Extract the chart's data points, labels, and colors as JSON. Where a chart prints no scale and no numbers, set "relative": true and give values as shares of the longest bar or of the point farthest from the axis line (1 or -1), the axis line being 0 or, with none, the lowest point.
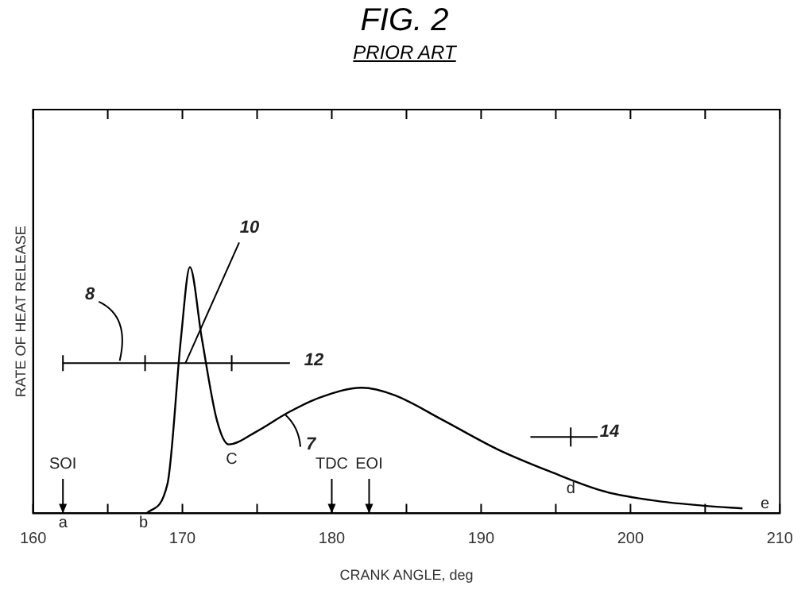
{
  "chart_data": {
    "type": "line",
    "title": "FIG. 2",
    "subtitle": "PRIOR ART",
    "xlabel": "CRANK ANGLE, deg",
    "ylabel": "RATE OF HEAT RELEASE",
    "relative": true,
    "color": "#000000",
    "x": [
      167.6,
      169.0,
      169.9,
      170.5,
      171.3,
      172.3,
      173.1,
      174.9,
      177.1,
      179.2,
      182.0,
      184.2,
      187.4,
      191.1,
      194.6,
      198.2,
      201.8,
      205.1,
      207.5
    ],
    "values": [
      0,
      0.12,
      0.71,
      1.0,
      0.71,
      0.38,
      0.28,
      0.33,
      0.41,
      0.47,
      0.51,
      0.48,
      0.38,
      0.26,
      0.17,
      0.09,
      0.05,
      0.03,
      0.02
    ],
    "xlim": [
      160,
      210
    ],
    "xticks": [
      160,
      {
        "value": 165,
        "label": null
      },
      170,
      {
        "value": 175,
        "label": null
      },
      180,
      {
        "value": 185,
        "label": null
      },
      190,
      {
        "value": 195,
        "label": null
      },
      200,
      {
        "value": 205,
        "label": null
      },
      210
    ],
    "grid": false,
    "legend": false,
    "marker": "none",
    "line_style": "solid",
    "annotations": [
      "SOI",
      "a",
      "b",
      "C",
      "TDC",
      "EOI",
      "d",
      "e",
      "7",
      "8",
      "10",
      "12",
      "14"
    ]
  }
}
